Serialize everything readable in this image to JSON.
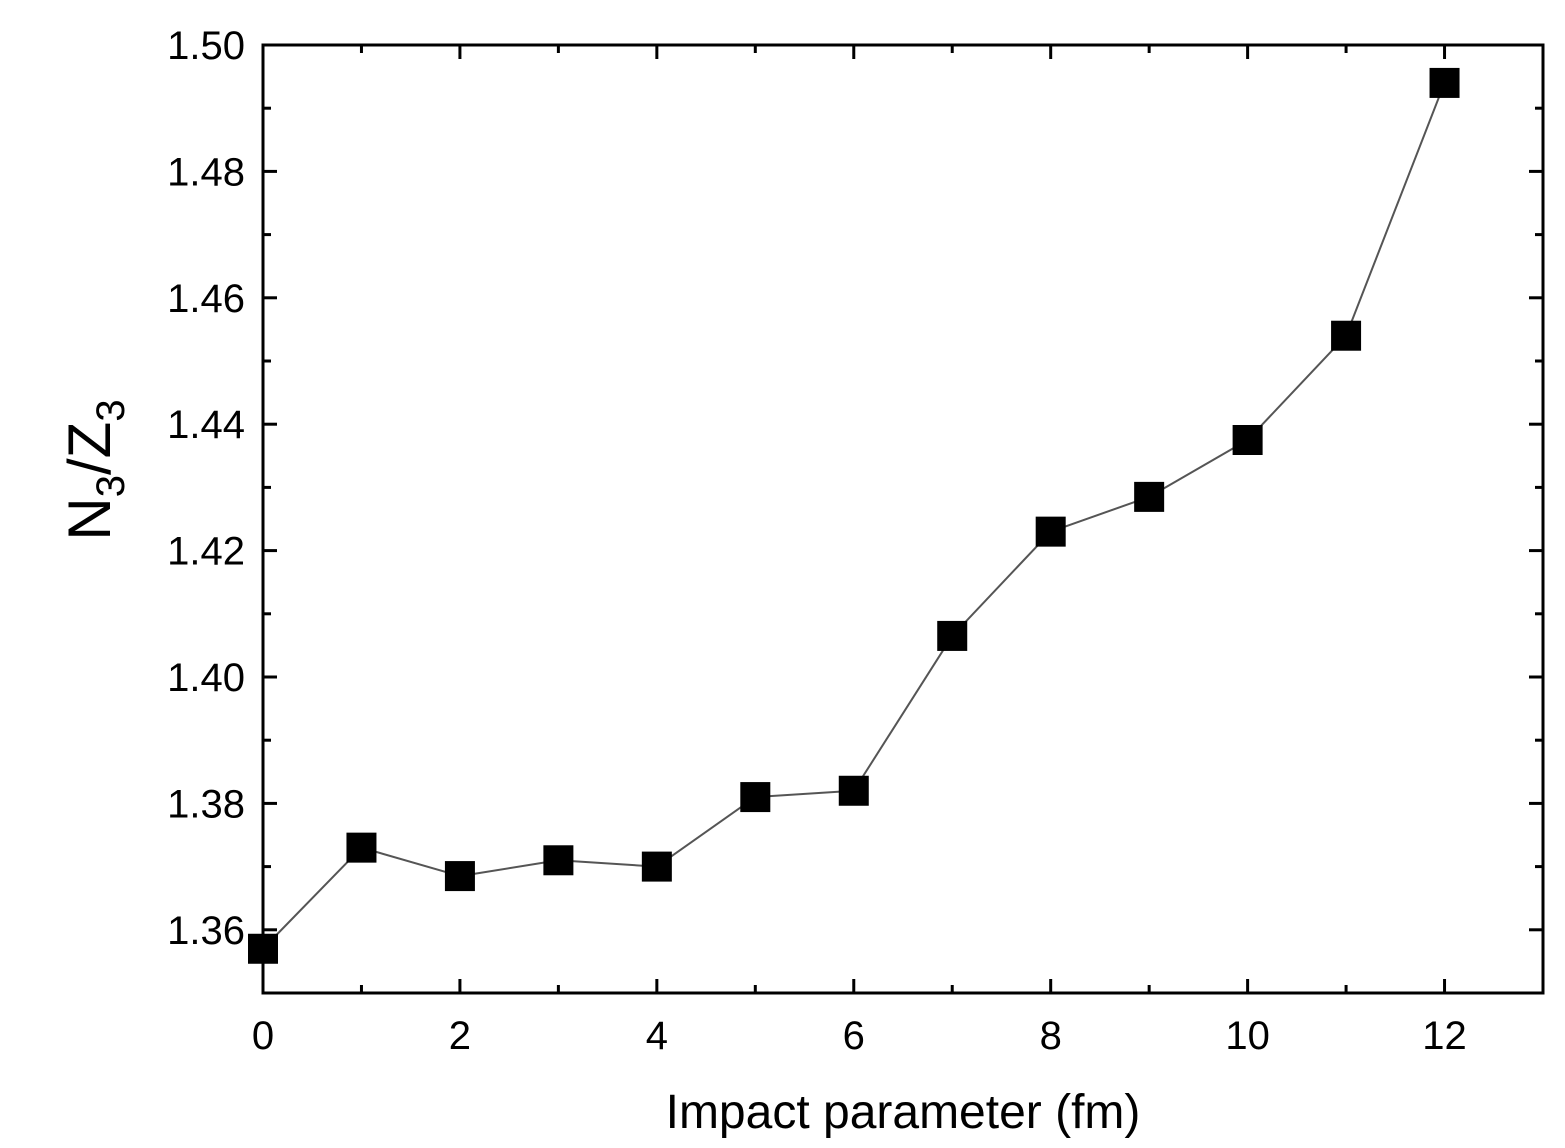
{
  "chart_data": {
    "type": "scatter",
    "title": "",
    "xlabel": "Impact parameter (fm)",
    "ylabel": {
      "main": "N",
      "sub1": "3",
      "slash": "/Z",
      "sub2": "3"
    },
    "xlim": [
      0,
      13
    ],
    "ylim": [
      1.35,
      1.5
    ],
    "xticks": [
      0,
      2,
      4,
      6,
      8,
      10,
      12
    ],
    "xtick_labels": [
      "0",
      "2",
      "4",
      "6",
      "8",
      "10",
      "12"
    ],
    "yticks": [
      1.36,
      1.38,
      1.4,
      1.42,
      1.44,
      1.46,
      1.48,
      1.5
    ],
    "ytick_labels": [
      "1.36",
      "1.38",
      "1.40",
      "1.42",
      "1.44",
      "1.46",
      "1.48",
      "1.50"
    ],
    "grid": false,
    "series": [
      {
        "name": "N3/Z3",
        "marker": "square",
        "line": true,
        "x": [
          0,
          1,
          2,
          3,
          4,
          5,
          6,
          7,
          8,
          9,
          10,
          11,
          12
        ],
        "y": [
          1.357,
          1.373,
          1.3685,
          1.371,
          1.37,
          1.381,
          1.382,
          1.4065,
          1.423,
          1.4285,
          1.4375,
          1.454,
          1.494
        ]
      }
    ],
    "colors": {
      "marker": "#000000",
      "line": "#555555",
      "axis": "#000000"
    }
  }
}
